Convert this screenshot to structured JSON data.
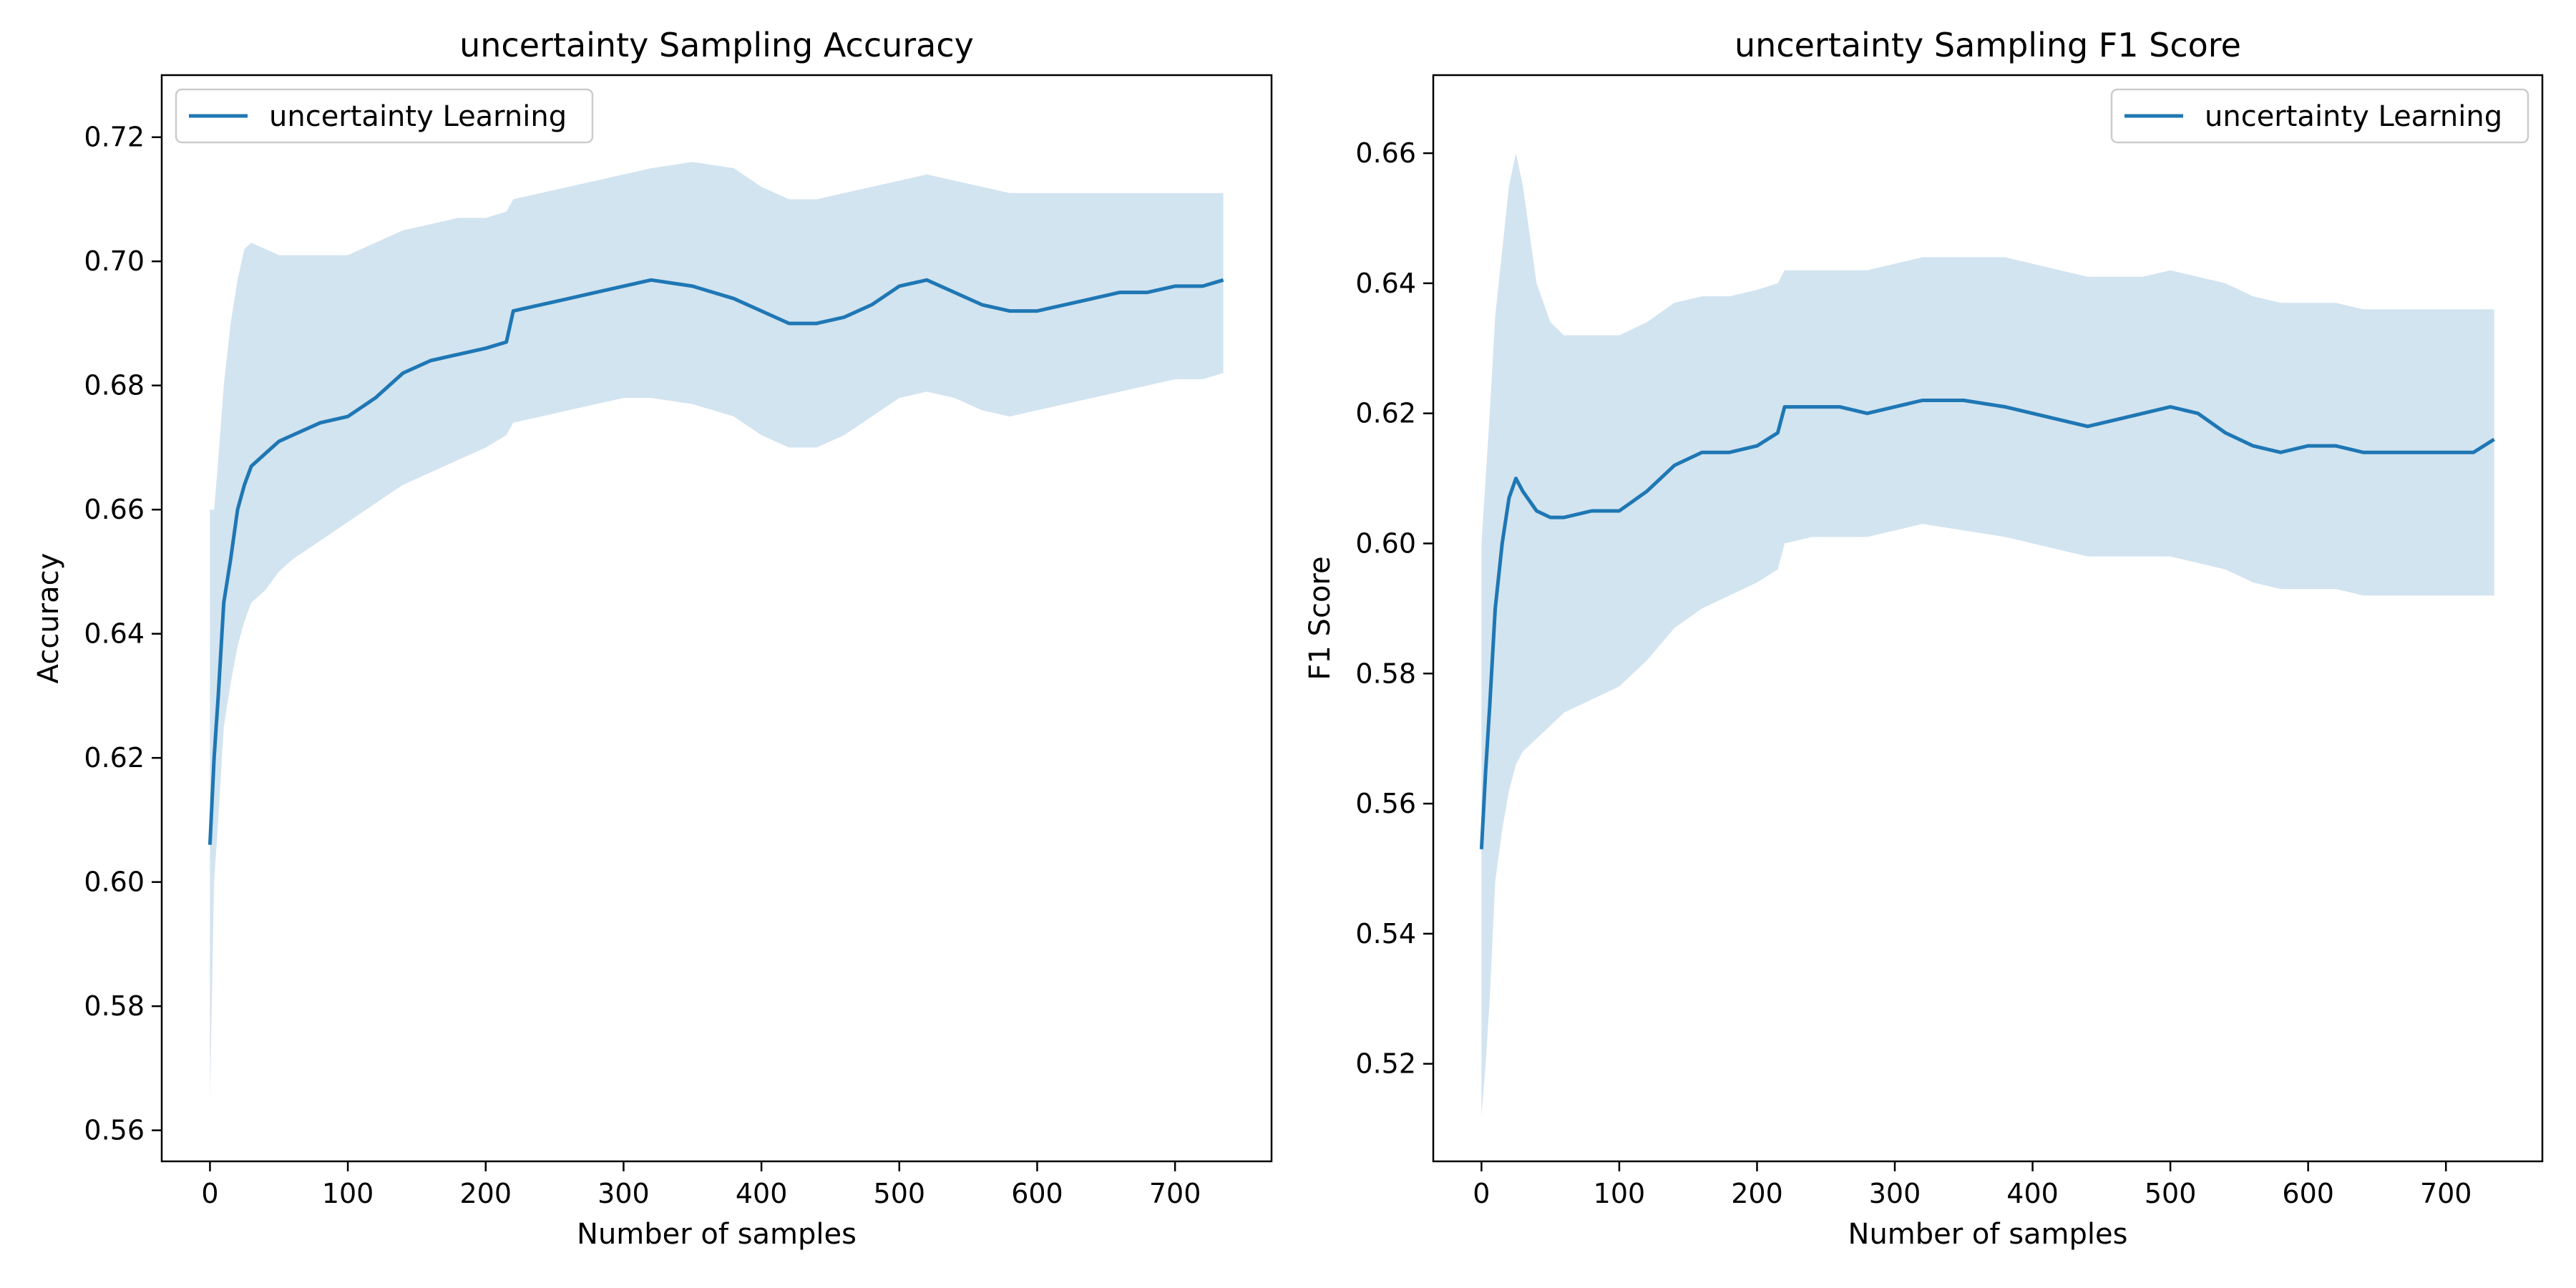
{
  "chart_data": [
    {
      "type": "line",
      "title": "uncertainty Sampling Accuracy",
      "xlabel": "Number of samples",
      "ylabel": "Accuracy",
      "xlim": [
        -35,
        770
      ],
      "ylim": [
        0.555,
        0.73
      ],
      "xticks": [
        0,
        100,
        200,
        300,
        400,
        500,
        600,
        700
      ],
      "yticks": [
        0.56,
        0.58,
        0.6,
        0.62,
        0.64,
        0.66,
        0.68,
        0.7,
        0.72
      ],
      "ytick_decimals": 2,
      "legend": "upper-left",
      "grid": false,
      "series": [
        {
          "name": "uncertainty Learning",
          "color": "#1f77b4",
          "band_color": "#1f77b4",
          "x": [
            0,
            3,
            6,
            10,
            15,
            20,
            25,
            30,
            40,
            50,
            60,
            80,
            100,
            120,
            140,
            160,
            180,
            200,
            215,
            220,
            240,
            260,
            280,
            300,
            320,
            350,
            380,
            400,
            420,
            440,
            460,
            480,
            500,
            520,
            540,
            560,
            580,
            600,
            620,
            640,
            660,
            680,
            700,
            720,
            735
          ],
          "y": [
            0.606,
            0.62,
            0.63,
            0.645,
            0.652,
            0.66,
            0.664,
            0.667,
            0.669,
            0.671,
            0.672,
            0.674,
            0.675,
            0.678,
            0.682,
            0.684,
            0.685,
            0.686,
            0.687,
            0.692,
            0.693,
            0.694,
            0.695,
            0.696,
            0.697,
            0.696,
            0.694,
            0.692,
            0.69,
            0.69,
            0.691,
            0.693,
            0.696,
            0.697,
            0.695,
            0.693,
            0.692,
            0.692,
            0.693,
            0.694,
            0.695,
            0.695,
            0.696,
            0.696,
            0.697
          ],
          "lower": [
            0.565,
            0.6,
            0.61,
            0.625,
            0.632,
            0.638,
            0.642,
            0.645,
            0.647,
            0.65,
            0.652,
            0.655,
            0.658,
            0.661,
            0.664,
            0.666,
            0.668,
            0.67,
            0.672,
            0.674,
            0.675,
            0.676,
            0.677,
            0.678,
            0.678,
            0.677,
            0.675,
            0.672,
            0.67,
            0.67,
            0.672,
            0.675,
            0.678,
            0.679,
            0.678,
            0.676,
            0.675,
            0.676,
            0.677,
            0.678,
            0.679,
            0.68,
            0.681,
            0.681,
            0.682
          ],
          "upper": [
            0.66,
            0.66,
            0.668,
            0.68,
            0.69,
            0.697,
            0.702,
            0.703,
            0.702,
            0.701,
            0.701,
            0.701,
            0.701,
            0.703,
            0.705,
            0.706,
            0.707,
            0.707,
            0.708,
            0.71,
            0.711,
            0.712,
            0.713,
            0.714,
            0.715,
            0.716,
            0.715,
            0.712,
            0.71,
            0.71,
            0.711,
            0.712,
            0.713,
            0.714,
            0.713,
            0.712,
            0.711,
            0.711,
            0.711,
            0.711,
            0.711,
            0.711,
            0.711,
            0.711,
            0.711
          ]
        }
      ]
    },
    {
      "type": "line",
      "title": "uncertainty Sampling F1 Score",
      "xlabel": "Number of samples",
      "ylabel": "F1 Score",
      "xlim": [
        -35,
        770
      ],
      "ylim": [
        0.505,
        0.672
      ],
      "xticks": [
        0,
        100,
        200,
        300,
        400,
        500,
        600,
        700
      ],
      "yticks": [
        0.52,
        0.54,
        0.56,
        0.58,
        0.6,
        0.62,
        0.64,
        0.66
      ],
      "ytick_decimals": 2,
      "legend": "upper-right",
      "grid": false,
      "series": [
        {
          "name": "uncertainty Learning",
          "color": "#1f77b4",
          "band_color": "#1f77b4",
          "x": [
            0,
            3,
            6,
            10,
            15,
            20,
            25,
            30,
            40,
            50,
            60,
            80,
            100,
            120,
            140,
            160,
            180,
            200,
            215,
            220,
            240,
            260,
            280,
            300,
            320,
            350,
            380,
            400,
            420,
            440,
            460,
            480,
            500,
            520,
            540,
            560,
            580,
            600,
            620,
            640,
            660,
            680,
            700,
            720,
            735
          ],
          "y": [
            0.553,
            0.565,
            0.575,
            0.59,
            0.6,
            0.607,
            0.61,
            0.608,
            0.605,
            0.604,
            0.604,
            0.605,
            0.605,
            0.608,
            0.612,
            0.614,
            0.614,
            0.615,
            0.617,
            0.621,
            0.621,
            0.621,
            0.62,
            0.621,
            0.622,
            0.622,
            0.621,
            0.62,
            0.619,
            0.618,
            0.619,
            0.62,
            0.621,
            0.62,
            0.617,
            0.615,
            0.614,
            0.615,
            0.615,
            0.614,
            0.614,
            0.614,
            0.614,
            0.614,
            0.616
          ],
          "lower": [
            0.512,
            0.52,
            0.53,
            0.548,
            0.556,
            0.562,
            0.566,
            0.568,
            0.57,
            0.572,
            0.574,
            0.576,
            0.578,
            0.582,
            0.587,
            0.59,
            0.592,
            0.594,
            0.596,
            0.6,
            0.601,
            0.601,
            0.601,
            0.602,
            0.603,
            0.602,
            0.601,
            0.6,
            0.599,
            0.598,
            0.598,
            0.598,
            0.598,
            0.597,
            0.596,
            0.594,
            0.593,
            0.593,
            0.593,
            0.592,
            0.592,
            0.592,
            0.592,
            0.592,
            0.592
          ],
          "upper": [
            0.6,
            0.61,
            0.62,
            0.635,
            0.645,
            0.655,
            0.66,
            0.655,
            0.64,
            0.634,
            0.632,
            0.632,
            0.632,
            0.634,
            0.637,
            0.638,
            0.638,
            0.639,
            0.64,
            0.642,
            0.642,
            0.642,
            0.642,
            0.643,
            0.644,
            0.644,
            0.644,
            0.643,
            0.642,
            0.641,
            0.641,
            0.641,
            0.642,
            0.641,
            0.64,
            0.638,
            0.637,
            0.637,
            0.637,
            0.636,
            0.636,
            0.636,
            0.636,
            0.636,
            0.636
          ]
        }
      ]
    }
  ]
}
